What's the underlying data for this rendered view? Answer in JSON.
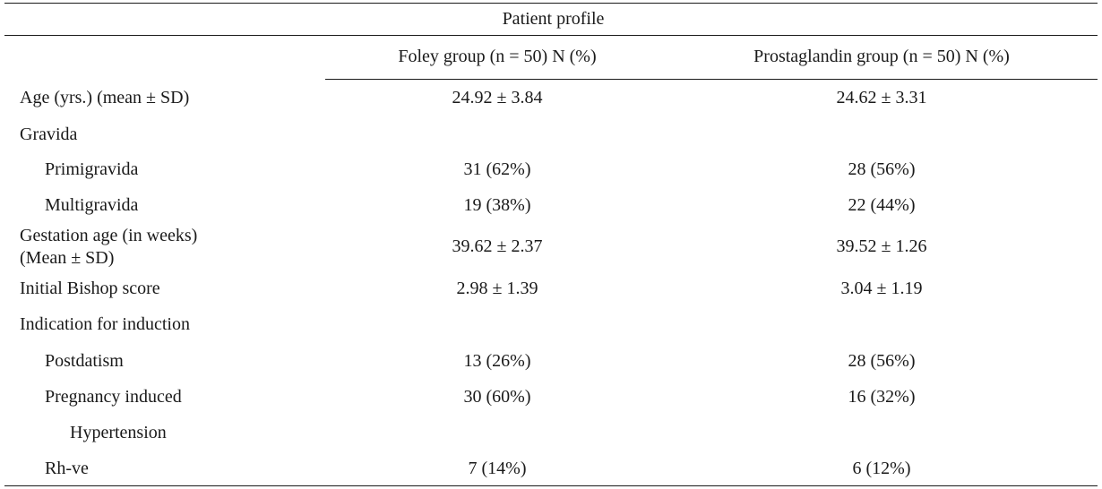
{
  "table": {
    "caption": "Patient profile",
    "headers": {
      "foley": "Foley group (n = 50) N (%)",
      "prostaglandin": "Prostaglandin group (n = 50) N (%)"
    },
    "rows": [
      {
        "label": "Age (yrs.) (mean ± SD)",
        "foley": "24.92 ± 3.84",
        "prostaglandin": "24.62 ± 3.31"
      },
      {
        "label": "Gravida",
        "foley": "",
        "prostaglandin": ""
      },
      {
        "label": "Primigravida",
        "foley": "31 (62%)",
        "prostaglandin": "28 (56%)"
      },
      {
        "label": "Multigravida",
        "foley": "19 (38%)",
        "prostaglandin": "22 (44%)"
      },
      {
        "label": "Gestation age (in weeks)",
        "label_line2": "(Mean ± SD)",
        "foley": "39.62 ± 2.37",
        "prostaglandin": "39.52 ± 1.26"
      },
      {
        "label": "Initial Bishop score",
        "foley": "2.98 ± 1.39",
        "prostaglandin": "3.04 ± 1.19"
      },
      {
        "label": "Indication for induction",
        "foley": "",
        "prostaglandin": ""
      },
      {
        "label": "Postdatism",
        "foley": "13 (26%)",
        "prostaglandin": "28 (56%)"
      },
      {
        "label": "Pregnancy induced",
        "label_line2": "Hypertension",
        "foley": "30 (60%)",
        "prostaglandin": "16 (32%)"
      },
      {
        "label": "Rh-ve",
        "foley": "7 (14%)",
        "prostaglandin": "6 (12%)"
      }
    ]
  }
}
